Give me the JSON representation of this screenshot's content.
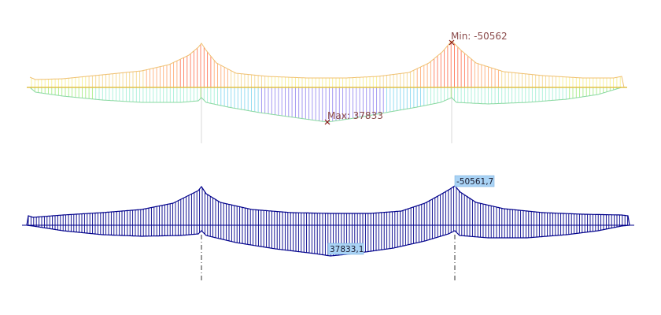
{
  "top_diagram": {
    "min_label": "Min: -50562",
    "max_label": "Max: 37833",
    "min_marker_icon": "x-marker-icon",
    "max_marker_icon": "x-marker-icon"
  },
  "bottom_diagram": {
    "min_value_label": "-50561,7",
    "max_value_label": "37833,1",
    "line_color": "#00008b",
    "tag_color": "#a9d3f5"
  }
}
